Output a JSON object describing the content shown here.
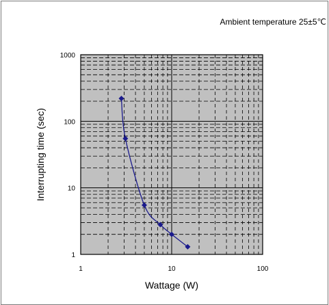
{
  "chart_data": {
    "type": "scatter",
    "annotation": "Ambient temperature 25±5℃",
    "xlabel": "Wattage (W)",
    "ylabel": "Interrupting time (sec)",
    "x_scale": "log",
    "y_scale": "log",
    "xlim": [
      1,
      100
    ],
    "ylim": [
      1,
      1000
    ],
    "x_ticks": [
      "1",
      "10",
      "100"
    ],
    "y_ticks": [
      "1",
      "10",
      "100",
      "1000"
    ],
    "grid": true,
    "legend": "none",
    "series": [
      {
        "x": [
          2.8,
          3.1,
          5.0,
          7.5,
          10.0,
          15.0
        ],
        "y": [
          220,
          55,
          5.5,
          2.8,
          2.0,
          1.3
        ],
        "line_style": "smooth",
        "marker": "diamond"
      }
    ]
  },
  "colors": {
    "plot_background": "#c0c0c0",
    "series": "#1a1a8c",
    "grid": "#000000",
    "frame_border": "#7a7a7a"
  }
}
